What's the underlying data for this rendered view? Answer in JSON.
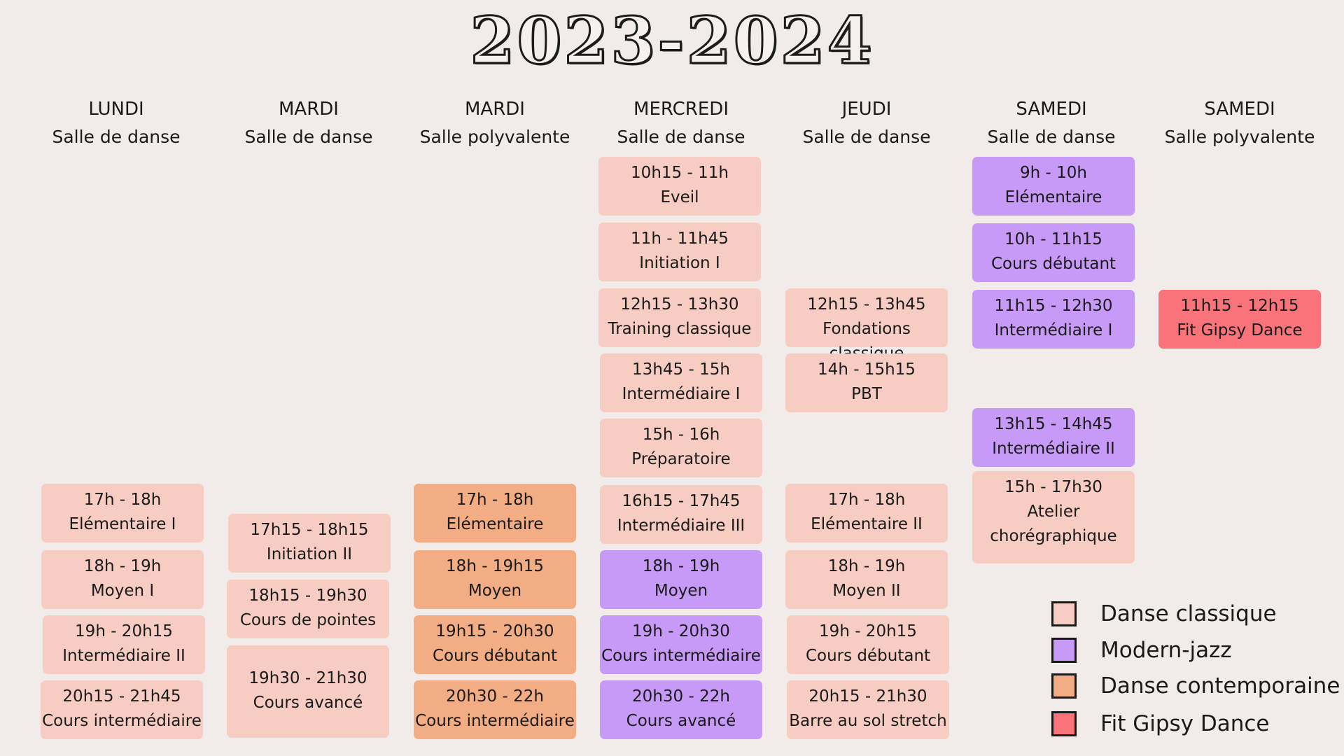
{
  "title": "2023-2024",
  "colors": {
    "classique": "#f7cdc3",
    "jazz": "#c79af8",
    "contemporaine": "#f3ad84",
    "gipsy": "#f8747a"
  },
  "columns": [
    {
      "day": "LUNDI",
      "room": "Salle de danse",
      "cards": [
        {
          "time": "17h - 18h",
          "name": "Elémentaire I",
          "style": "classique"
        },
        {
          "time": "18h - 19h",
          "name": "Moyen I",
          "style": "classique"
        },
        {
          "time": "19h - 20h15",
          "name": "Intermédiaire II",
          "style": "classique"
        },
        {
          "time": "20h15 - 21h45",
          "name": "Cours intermédiaire",
          "style": "classique"
        }
      ]
    },
    {
      "day": "MARDI",
      "room": "Salle de danse",
      "cards": [
        {
          "time": "17h15 - 18h15",
          "name": "Initiation II",
          "style": "classique"
        },
        {
          "time": "18h15 - 19h30",
          "name": "Cours de pointes",
          "style": "classique"
        },
        {
          "time": "19h30 - 21h30",
          "name": "Cours avancé",
          "style": "classique"
        }
      ]
    },
    {
      "day": "MARDI",
      "room": "Salle polyvalente",
      "cards": [
        {
          "time": "17h - 18h",
          "name": "Elémentaire",
          "style": "contemporaine"
        },
        {
          "time": "18h - 19h15",
          "name": "Moyen",
          "style": "contemporaine"
        },
        {
          "time": "19h15 - 20h30",
          "name": "Cours débutant",
          "style": "contemporaine"
        },
        {
          "time": "20h30 - 22h",
          "name": "Cours intermédiaire",
          "style": "contemporaine"
        }
      ]
    },
    {
      "day": "MERCREDI",
      "room": "Salle de danse",
      "cards": [
        {
          "time": "10h15 - 11h",
          "name": "Eveil",
          "style": "classique"
        },
        {
          "time": "11h - 11h45",
          "name": "Initiation I",
          "style": "classique"
        },
        {
          "time": "12h15 - 13h30",
          "name": "Training classique",
          "style": "classique"
        },
        {
          "time": "13h45 - 15h",
          "name": "Intermédiaire I",
          "style": "classique"
        },
        {
          "time": "15h - 16h",
          "name": "Préparatoire",
          "style": "classique"
        },
        {
          "time": "16h15 - 17h45",
          "name": "Intermédiaire III",
          "style": "classique"
        },
        {
          "time": "18h - 19h",
          "name": "Moyen",
          "style": "jazz"
        },
        {
          "time": "19h - 20h30",
          "name": "Cours intermédiaire",
          "style": "jazz"
        },
        {
          "time": "20h30 - 22h",
          "name": "Cours avancé",
          "style": "jazz"
        }
      ]
    },
    {
      "day": "JEUDI",
      "room": "Salle de danse",
      "cards": [
        {
          "time": "12h15 - 13h45",
          "name": "Fondations classique",
          "style": "classique"
        },
        {
          "time": "14h - 15h15",
          "name": "PBT",
          "style": "classique"
        },
        {
          "time": "17h - 18h",
          "name": "Elémentaire II",
          "style": "classique"
        },
        {
          "time": "18h - 19h",
          "name": "Moyen II",
          "style": "classique"
        },
        {
          "time": "19h - 20h15",
          "name": "Cours débutant",
          "style": "classique"
        },
        {
          "time": "20h15 - 21h30",
          "name": "Barre au sol stretch",
          "style": "classique"
        }
      ]
    },
    {
      "day": "SAMEDI",
      "room": "Salle de danse",
      "cards": [
        {
          "time": "9h - 10h",
          "name": "Elémentaire",
          "style": "jazz"
        },
        {
          "time": "10h - 11h15",
          "name": "Cours débutant",
          "style": "jazz"
        },
        {
          "time": "11h15 - 12h30",
          "name": "Intermédiaire I",
          "style": "jazz"
        },
        {
          "time": "13h15 - 14h45",
          "name": "Intermédiaire II",
          "style": "jazz"
        },
        {
          "time": "15h - 17h30",
          "name": "Atelier",
          "name2": "chorégraphique",
          "style": "classique"
        }
      ]
    },
    {
      "day": "SAMEDI",
      "room": "Salle polyvalente",
      "cards": [
        {
          "time": "11h15 - 12h15",
          "name": "Fit Gipsy Dance",
          "style": "gipsy"
        }
      ]
    }
  ],
  "legend": [
    {
      "label": "Danse classique",
      "style": "classique"
    },
    {
      "label": "Modern-jazz",
      "style": "jazz"
    },
    {
      "label": "Danse contemporaine",
      "style": "contemporaine"
    },
    {
      "label": "Fit Gipsy Dance",
      "style": "gipsy"
    }
  ]
}
